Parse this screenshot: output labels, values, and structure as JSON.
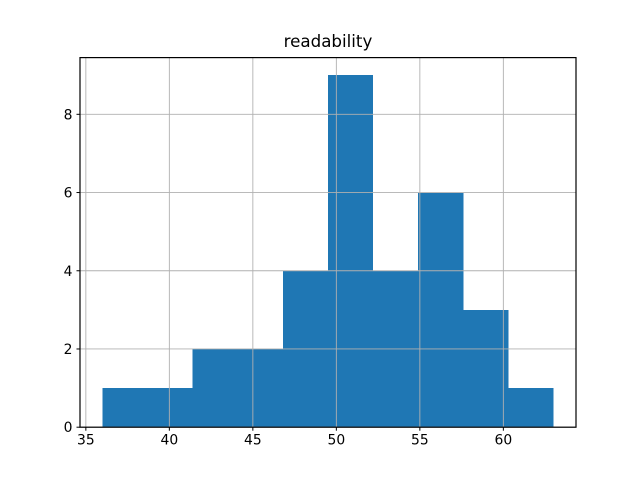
{
  "colors": {
    "bar": "#1f77b4",
    "grid": "#b0b0b0",
    "spine": "#000000",
    "tick": "#000000",
    "background": "#ffffff"
  },
  "chart_data": {
    "type": "bar",
    "subtype": "histogram",
    "title": "readability",
    "xlabel": "",
    "ylabel": "",
    "bin_edges": [
      36.0,
      38.7,
      41.4,
      44.1,
      46.8,
      49.5,
      52.2,
      54.9,
      57.6,
      60.3,
      63.0
    ],
    "counts": [
      1,
      1,
      2,
      2,
      4,
      9,
      4,
      6,
      3,
      1
    ],
    "total_count": 33,
    "xlim": [
      34.65,
      64.35
    ],
    "ylim": [
      0,
      9.45
    ],
    "x_ticks": [
      35,
      40,
      45,
      50,
      55,
      60
    ],
    "y_ticks": [
      0,
      2,
      4,
      6,
      8
    ],
    "grid": true,
    "grid_on_top_of_bars": true,
    "legend_position": "none",
    "bar_color": "#1f77b4"
  }
}
